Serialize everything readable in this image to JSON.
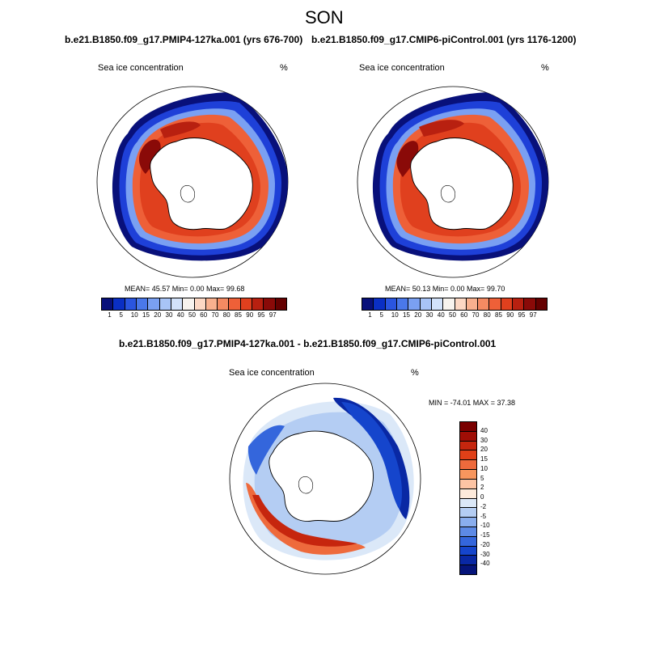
{
  "figure": {
    "title": "SON"
  },
  "panels": [
    {
      "subtitle": "b.e21.B1850.f09_g17.PMIP4-127ka.001 (yrs 676-700)",
      "left_label": "Sea ice concentration",
      "right_label": "%",
      "stats": "MEAN= 45.57 Min= 0.00 Max= 99.68"
    },
    {
      "subtitle": "b.e21.B1850.f09_g17.CMIP6-piControl.001 (yrs 1176-1200)",
      "left_label": "Sea ice concentration",
      "right_label": "%",
      "stats": "MEAN= 50.13 Min= 0.00 Max= 99.70"
    }
  ],
  "diff_panel": {
    "subtitle": "b.e21.B1850.f09_g17.PMIP4-127ka.001 - b.e21.B1850.f09_g17.CMIP6-piControl.001",
    "left_label": "Sea ice concentration",
    "right_label": "%",
    "minmax": "MIN = -74.01 MAX = 37.38"
  },
  "colorbar_abs": {
    "labels": [
      "1",
      "5",
      "10",
      "15",
      "20",
      "30",
      "40",
      "50",
      "60",
      "70",
      "80",
      "85",
      "90",
      "95",
      "97"
    ],
    "colors": [
      "#08107a",
      "#0a2fc4",
      "#2a55e0",
      "#4a78ea",
      "#7aa0f2",
      "#a8c4f7",
      "#d2e2fa",
      "#f7f3ee",
      "#fcd8c4",
      "#f8b08e",
      "#f48a62",
      "#ee6038",
      "#e0401e",
      "#b82010",
      "#8a0a08",
      "#650000"
    ]
  },
  "colorbar_diff": {
    "labels": [
      "40",
      "30",
      "20",
      "15",
      "10",
      "5",
      "2",
      "0",
      "-2",
      "-5",
      "-10",
      "-15",
      "-20",
      "-30",
      "-40"
    ],
    "colors": [
      "#7a0000",
      "#a00e06",
      "#c6260e",
      "#e04018",
      "#ee6a3c",
      "#f7965e",
      "#fcc4a4",
      "#fdeadb",
      "#dbe8f8",
      "#b4cdf3",
      "#8aaeee",
      "#5d8ae6",
      "#3466dc",
      "#1545cc",
      "#0928a4",
      "#05147a"
    ]
  },
  "maps": [
    {
      "panel": 0,
      "ice_summary": "high-concentration ring around Antarctica, red inner band, blue outer edge"
    },
    {
      "panel": 1,
      "ice_summary": "high-concentration ring around Antarctica, red inner band, blue outer edge"
    },
    {
      "panel": 2,
      "ice_summary": "difference: strong negative (blue) in east sector, positive (red) in south-west sector"
    }
  ]
}
